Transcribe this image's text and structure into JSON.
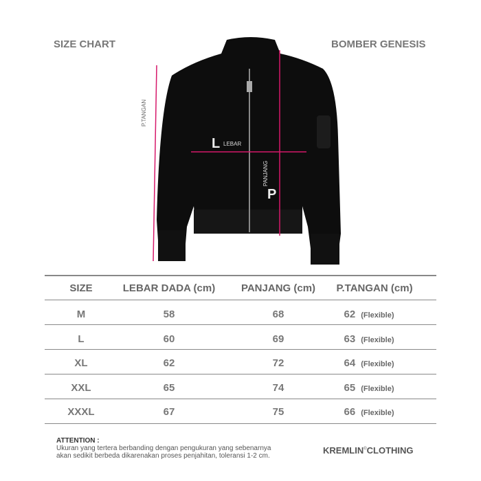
{
  "header": {
    "left_title": "SIZE CHART",
    "right_title": "BOMBER GENESIS"
  },
  "diagram": {
    "sleeve_label": "P.TANGAN",
    "width_letter": "L",
    "width_label": "LEBAR",
    "length_letter": "P",
    "length_label": "PANJANG",
    "accent_color": "#d6186a",
    "jacket_color": "#0d0d0d"
  },
  "table": {
    "headers": [
      "SIZE",
      "LEBAR DADA (cm)",
      "PANJANG (cm)",
      "P.TANGAN (cm)"
    ],
    "rows": [
      {
        "size": "M",
        "lebar": "58",
        "panjang": "68",
        "tangan": "62",
        "note": "(Flexible)"
      },
      {
        "size": "L",
        "lebar": "60",
        "panjang": "69",
        "tangan": "63",
        "note": "(Flexible)"
      },
      {
        "size": "XL",
        "lebar": "62",
        "panjang": "72",
        "tangan": "64",
        "note": "(Flexible)"
      },
      {
        "size": "XXL",
        "lebar": "65",
        "panjang": "74",
        "tangan": "65",
        "note": "(Flexible)"
      },
      {
        "size": "XXXL",
        "lebar": "67",
        "panjang": "75",
        "tangan": "66",
        "note": "(Flexible)"
      }
    ]
  },
  "footer": {
    "attention_title": "ATTENTION :",
    "attention_line1": "Ukuran yang tertera berbanding dengan pengukuran yang sebenarnya",
    "attention_line2": "akan sedikit berbeda dikarenakan proses penjahitan, toleransi 1-2 cm.",
    "brand": "KREMLIN",
    "brand_mark": "®",
    "brand_suffix": "CLOTHING"
  }
}
